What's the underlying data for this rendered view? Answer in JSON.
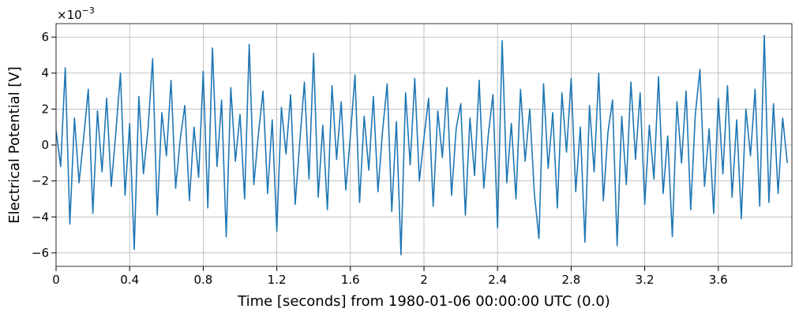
{
  "chart_data": {
    "type": "line",
    "xlabel": "Time [seconds] from 1980-01-06 00:00:00 UTC (0.0)",
    "ylabel": "Electrical Potential [V]",
    "y_multiplier": {
      "base": "×10",
      "exponent": "−3"
    },
    "xlim": [
      0,
      4.0
    ],
    "ylim": [
      -6.75,
      6.75
    ],
    "xticks": [
      0,
      0.4,
      0.8,
      1.2,
      1.6,
      2,
      2.4,
      2.8,
      3.2,
      3.6
    ],
    "yticks": [
      {
        "value": -6,
        "label": "−6"
      },
      {
        "value": -4,
        "label": "−4"
      },
      {
        "value": -2,
        "label": "−2"
      },
      0,
      2,
      4,
      6
    ],
    "grid": true,
    "x": [
      0,
      0.025,
      0.05,
      0.075,
      0.1,
      0.125,
      0.15,
      0.175,
      0.2,
      0.225,
      0.25,
      0.275,
      0.3,
      0.325,
      0.35,
      0.375,
      0.4,
      0.425,
      0.45,
      0.475,
      0.5,
      0.525,
      0.55,
      0.575,
      0.6,
      0.625,
      0.65,
      0.675,
      0.7,
      0.725,
      0.75,
      0.775,
      0.8,
      0.825,
      0.85,
      0.875,
      0.9,
      0.925,
      0.95,
      0.975,
      1,
      1.025,
      1.05,
      1.075,
      1.1,
      1.125,
      1.15,
      1.175,
      1.2,
      1.225,
      1.25,
      1.275,
      1.3,
      1.325,
      1.35,
      1.375,
      1.4,
      1.425,
      1.45,
      1.475,
      1.5,
      1.525,
      1.55,
      1.575,
      1.6,
      1.625,
      1.65,
      1.675,
      1.7,
      1.725,
      1.75,
      1.775,
      1.8,
      1.825,
      1.85,
      1.875,
      1.9,
      1.925,
      1.95,
      1.975,
      2,
      2.025,
      2.05,
      2.075,
      2.1,
      2.125,
      2.15,
      2.175,
      2.2,
      2.225,
      2.25,
      2.275,
      2.3,
      2.325,
      2.35,
      2.375,
      2.4,
      2.425,
      2.45,
      2.475,
      2.5,
      2.525,
      2.55,
      2.575,
      2.6,
      2.625,
      2.65,
      2.675,
      2.7,
      2.725,
      2.75,
      2.775,
      2.8,
      2.825,
      2.85,
      2.875,
      2.9,
      2.925,
      2.95,
      2.975,
      3,
      3.025,
      3.05,
      3.075,
      3.1,
      3.125,
      3.15,
      3.175,
      3.2,
      3.225,
      3.25,
      3.275,
      3.3,
      3.325,
      3.35,
      3.375,
      3.4,
      3.425,
      3.45,
      3.475,
      3.5,
      3.525,
      3.55,
      3.575,
      3.6,
      3.625,
      3.65,
      3.675,
      3.7,
      3.725,
      3.75,
      3.775,
      3.8,
      3.825,
      3.85,
      3.875,
      3.9,
      3.925,
      3.95,
      3.975
    ],
    "series": [
      {
        "color": "#1f77b4",
        "values": [
          0.8,
          -1.2,
          4.3,
          -4.4,
          1.5,
          -2.1,
          0.4,
          3.1,
          -3.8,
          1.9,
          -1.5,
          2.6,
          -2.3,
          0.7,
          4.0,
          -2.8,
          1.2,
          -5.8,
          2.7,
          -1.6,
          0.9,
          4.8,
          -3.9,
          1.8,
          -0.6,
          3.6,
          -2.4,
          0.3,
          2.2,
          -3.1,
          1.0,
          -1.8,
          4.1,
          -3.5,
          5.4,
          -1.2,
          2.5,
          -5.1,
          3.2,
          -0.9,
          1.7,
          -3.0,
          5.6,
          -2.2,
          0.6,
          3.0,
          -2.7,
          1.4,
          -4.8,
          2.1,
          -0.5,
          2.8,
          -3.3,
          0.2,
          3.5,
          -1.9,
          5.1,
          -2.9,
          1.1,
          -3.6,
          3.3,
          -0.8,
          2.4,
          -2.5,
          0.5,
          3.9,
          -3.2,
          1.6,
          -1.4,
          2.7,
          -2.6,
          0.8,
          3.4,
          -3.7,
          1.3,
          -6.1,
          2.9,
          -1.1,
          3.7,
          -2.0,
          0.4,
          2.6,
          -3.4,
          1.9,
          -0.7,
          3.2,
          -2.8,
          0.9,
          2.3,
          -3.9,
          1.5,
          -1.7,
          3.6,
          -2.4,
          0.6,
          2.8,
          -4.6,
          5.8,
          -2.1,
          1.2,
          -3.0,
          3.1,
          -0.9,
          2.0,
          -2.7,
          -5.2,
          3.4,
          -1.3,
          1.8,
          -3.5,
          2.9,
          -0.4,
          3.7,
          -2.6,
          1.0,
          -5.4,
          2.2,
          -1.5,
          4.0,
          -3.1,
          0.7,
          2.5,
          -5.6,
          1.6,
          -2.2,
          3.5,
          -0.8,
          2.9,
          -3.3,
          1.1,
          -1.9,
          3.8,
          -2.7,
          0.5,
          -5.1,
          2.4,
          -1.0,
          3.0,
          -3.6,
          1.7,
          4.2,
          -2.3,
          0.9,
          -3.8,
          2.6,
          -1.6,
          3.3,
          -2.9,
          1.4,
          -4.1,
          2.0,
          -0.6,
          3.1,
          -3.4,
          6.1,
          -3.2,
          2.3,
          -2.7,
          1.5,
          -1.0
        ]
      }
    ]
  }
}
